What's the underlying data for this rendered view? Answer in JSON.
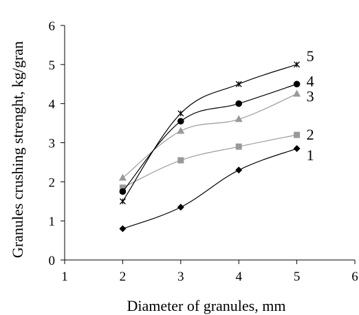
{
  "chart_data": {
    "type": "line",
    "xlabel": "Diameter of granules, mm",
    "ylabel": "Granules crushing strenght, kg/gran",
    "xlim": [
      1,
      6
    ],
    "ylim": [
      0,
      6
    ],
    "x_ticks": [
      "1",
      "2",
      "3",
      "4",
      "5",
      "6"
    ],
    "y_ticks": [
      "0",
      "1",
      "2",
      "3",
      "4",
      "5",
      "6"
    ],
    "grid": false,
    "legend": "none",
    "x": [
      2,
      3,
      4,
      5
    ],
    "series": [
      {
        "name": "1",
        "marker": "diamond",
        "color": "#000000",
        "values": [
          0.8,
          1.35,
          2.3,
          2.85
        ]
      },
      {
        "name": "2",
        "marker": "square",
        "color": "#999999",
        "values": [
          1.85,
          2.55,
          2.9,
          3.2
        ]
      },
      {
        "name": "3",
        "marker": "triangle",
        "color": "#999999",
        "values": [
          2.1,
          3.3,
          3.6,
          4.25
        ]
      },
      {
        "name": "4",
        "marker": "circle",
        "color": "#000000",
        "values": [
          1.75,
          3.55,
          4.0,
          4.5
        ]
      },
      {
        "name": "5",
        "marker": "star",
        "color": "#000000",
        "values": [
          1.5,
          3.75,
          4.5,
          5.0
        ]
      }
    ]
  }
}
